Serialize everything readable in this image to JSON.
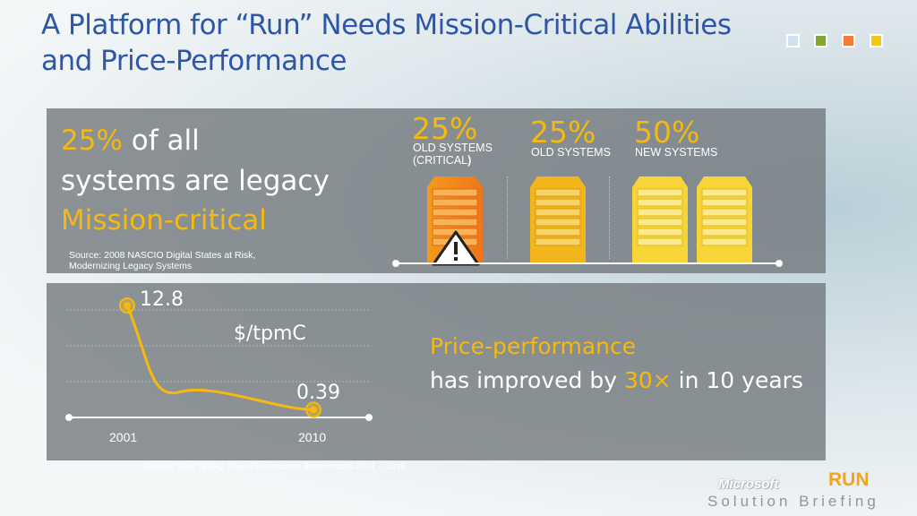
{
  "title": "A Platform for “Run” Needs Mission-Critical Abilities and Price-Performance",
  "colors": {
    "blue": "#cfe0ef",
    "green": "#7fa82d",
    "orange": "#ee7c3a",
    "yellow": "#f5c518",
    "gold": "#f5b90f"
  },
  "legacy": {
    "pct": "25%",
    "text1": " of all",
    "text2": "systems are legacy",
    "text3": "Mission-critical",
    "source": "Source: 2008 NASCIO Digital States at Risk, Modernizing Legacy Systems"
  },
  "segments": [
    {
      "pct": "25%",
      "label1": "OLD SYSTEMS",
      "label2": "(CRITICAL",
      "label2_bold": ")"
    },
    {
      "pct": "25%",
      "label1": "OLD SYSTEMS"
    },
    {
      "pct": "50%",
      "label1": "NEW SYSTEMS"
    }
  ],
  "chart_data": {
    "type": "line",
    "title": "$/tpmC",
    "x": [
      "2001",
      "2010"
    ],
    "series": [
      {
        "values": [
          12.8,
          0.39
        ]
      }
    ],
    "data_labels": [
      "12.8",
      "0.39"
    ],
    "tick_labels": [
      "2001",
      "2010"
    ]
  },
  "price": {
    "line1": "Price-performance",
    "line2_a": "has improved by ",
    "line2_b": "30×",
    "line2_c": " in 10 years"
  },
  "footer": {
    "source": "Source: Best TPC-C Price Performance Benchmarks 2001 – 2010",
    "brand": "Microsoft",
    "run": "RUN",
    "briefing": "Solution Briefing"
  }
}
